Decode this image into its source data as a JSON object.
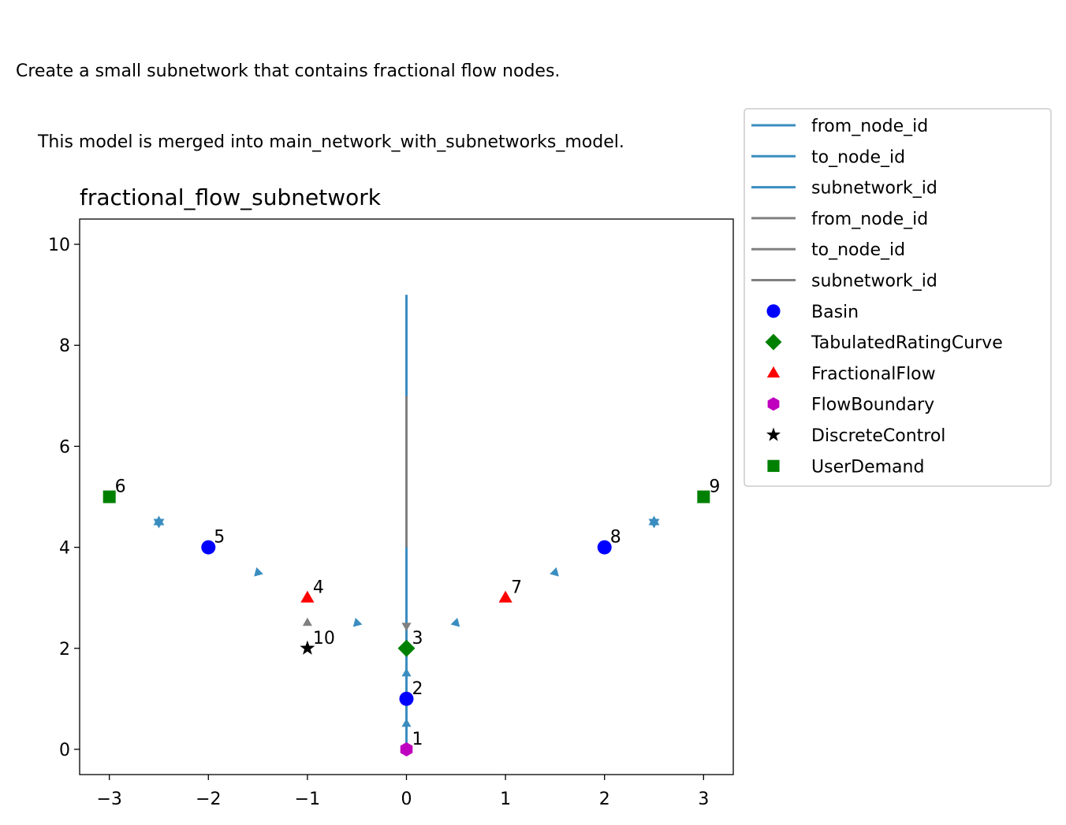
{
  "figure_title_lines": [
    "Create a small subnetwork that contains fractional flow nodes.",
    "    This model is merged into main_network_with_subnetworks_model."
  ],
  "chart_data": {
    "type": "scatter",
    "title": "fractional_flow_subnetwork",
    "xlabel": "",
    "ylabel": "",
    "xlim": [
      -3.3,
      3.3
    ],
    "ylim": [
      -0.5,
      10.5
    ],
    "x_ticks": [
      -3,
      -2,
      -1,
      0,
      1,
      2,
      3
    ],
    "y_ticks": [
      0,
      2,
      4,
      6,
      8,
      10
    ],
    "x_tick_labels": [
      "−3",
      "−2",
      "−1",
      "0",
      "1",
      "2",
      "3"
    ],
    "y_tick_labels": [
      "0",
      "2",
      "4",
      "6",
      "8",
      "10"
    ],
    "grid": false,
    "legend_placement": "outside-right-top",
    "colors": {
      "flow_edge": "#3a8dc0",
      "control_edge": "#808080",
      "basin": "#0000ff",
      "tabulated_rating_curve": "#008000",
      "fractional_flow": "#ff0000",
      "flow_boundary": "#bf00bf",
      "discrete_control": "#000000",
      "user_demand": "#008000"
    },
    "legend": [
      {
        "label": "from_node_id",
        "kind": "line",
        "color": "#3a8dc0"
      },
      {
        "label": "to_node_id",
        "kind": "line",
        "color": "#3a8dc0"
      },
      {
        "label": "subnetwork_id",
        "kind": "line",
        "color": "#3a8dc0"
      },
      {
        "label": "from_node_id",
        "kind": "line",
        "color": "#808080"
      },
      {
        "label": "to_node_id",
        "kind": "line",
        "color": "#808080"
      },
      {
        "label": "subnetwork_id",
        "kind": "line",
        "color": "#808080"
      },
      {
        "label": "Basin",
        "kind": "circle",
        "color": "#0000ff"
      },
      {
        "label": "TabulatedRatingCurve",
        "kind": "diamond",
        "color": "#008000"
      },
      {
        "label": "FractionalFlow",
        "kind": "triangle",
        "color": "#ff0000"
      },
      {
        "label": "FlowBoundary",
        "kind": "hexagon",
        "color": "#bf00bf"
      },
      {
        "label": "DiscreteControl",
        "kind": "star",
        "color": "#000000"
      },
      {
        "label": "UserDemand",
        "kind": "square",
        "color": "#008000"
      }
    ],
    "edge_lines": [
      {
        "x": [
          0,
          0
        ],
        "y": [
          0,
          9
        ],
        "color": "#3a8dc0"
      },
      {
        "x": [
          0,
          0
        ],
        "y": [
          4,
          7
        ],
        "color": "#808080"
      }
    ],
    "edge_arrows": [
      {
        "x": 0,
        "y": 0.5,
        "kind": "triangle-up",
        "color": "#3a8dc0"
      },
      {
        "x": 0,
        "y": 1.5,
        "kind": "triangle-up",
        "color": "#3a8dc0"
      },
      {
        "x": -0.5,
        "y": 2.5,
        "kind": "triangle-right",
        "color": "#3a8dc0"
      },
      {
        "x": 0.5,
        "y": 2.5,
        "kind": "triangle-left",
        "color": "#3a8dc0"
      },
      {
        "x": -1.5,
        "y": 3.5,
        "kind": "triangle-right",
        "color": "#3a8dc0"
      },
      {
        "x": 1.5,
        "y": 3.5,
        "kind": "triangle-left",
        "color": "#3a8dc0"
      },
      {
        "x": -2.5,
        "y": 4.5,
        "kind": "star6",
        "color": "#3a8dc0"
      },
      {
        "x": 2.5,
        "y": 4.5,
        "kind": "star6",
        "color": "#3a8dc0"
      },
      {
        "x": -1,
        "y": 2.5,
        "kind": "triangle-up",
        "color": "#808080"
      },
      {
        "x": 0,
        "y": 2.45,
        "kind": "triangle-down",
        "color": "#808080"
      }
    ],
    "nodes": [
      {
        "id": "1",
        "type": "FlowBoundary",
        "x": 0,
        "y": 0,
        "kind": "hexagon",
        "color": "#bf00bf"
      },
      {
        "id": "2",
        "type": "Basin",
        "x": 0,
        "y": 1,
        "kind": "circle",
        "color": "#0000ff"
      },
      {
        "id": "3",
        "type": "TabulatedRatingCurve",
        "x": 0,
        "y": 2,
        "kind": "diamond",
        "color": "#008000"
      },
      {
        "id": "4",
        "type": "FractionalFlow",
        "x": -1,
        "y": 3,
        "kind": "triangle",
        "color": "#ff0000"
      },
      {
        "id": "5",
        "type": "Basin",
        "x": -2,
        "y": 4,
        "kind": "circle",
        "color": "#0000ff"
      },
      {
        "id": "6",
        "type": "UserDemand",
        "x": -3,
        "y": 5,
        "kind": "square",
        "color": "#008000"
      },
      {
        "id": "7",
        "type": "FractionalFlow",
        "x": 1,
        "y": 3,
        "kind": "triangle",
        "color": "#ff0000"
      },
      {
        "id": "8",
        "type": "Basin",
        "x": 2,
        "y": 4,
        "kind": "circle",
        "color": "#0000ff"
      },
      {
        "id": "9",
        "type": "UserDemand",
        "x": 3,
        "y": 5,
        "kind": "square",
        "color": "#008000"
      },
      {
        "id": "10",
        "type": "DiscreteControl",
        "x": -1,
        "y": 2,
        "kind": "star",
        "color": "#000000"
      }
    ]
  }
}
